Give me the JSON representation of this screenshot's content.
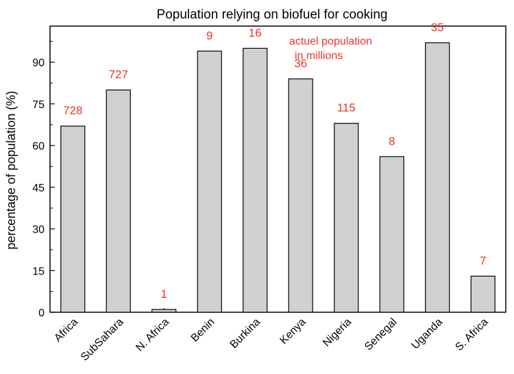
{
  "chart_data": {
    "type": "bar",
    "title": "Population relying on biofuel for cooking",
    "xlabel": "",
    "ylabel": "percentage of population (%)",
    "categories": [
      "Africa",
      "SubSahara",
      "N. Africa",
      "Benin",
      "Burkina",
      "Kenya",
      "Nigeria",
      "Senegal",
      "Uganda",
      "S. Africa"
    ],
    "values": [
      67,
      80,
      1,
      94,
      95,
      84,
      68,
      56,
      97,
      13
    ],
    "data_labels": [
      "728",
      "727",
      "1",
      "9",
      "16",
      "36",
      "115",
      "8",
      "35",
      "7"
    ],
    "annotation": [
      "actuel population",
      "in millions"
    ],
    "ylim": [
      0,
      103
    ],
    "yticks": [
      0,
      15,
      30,
      45,
      60,
      75,
      90
    ],
    "grid": false,
    "colors": {
      "bar_fill": "#d0d0d0",
      "bar_stroke": "#000000",
      "label_color": "#e8352a",
      "axis_color": "#000000"
    }
  }
}
